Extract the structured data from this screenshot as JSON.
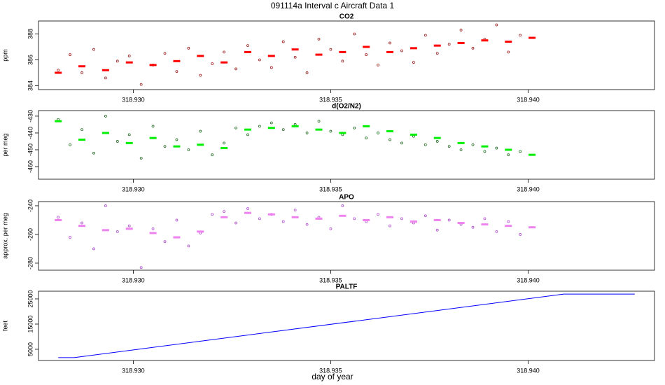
{
  "title": "091114a   Interval c Aircraft Data 1",
  "xlabel": "day of year",
  "chart_data": [
    {
      "type": "scatter",
      "title": "CO2",
      "ylabel": "ppm",
      "xlim": [
        318.9276,
        318.9432
      ],
      "ylim": [
        383.7,
        389.0
      ],
      "xticks": [
        {
          "value": 318.93,
          "label": "318.930"
        },
        {
          "value": 318.935,
          "label": "318.935"
        },
        {
          "value": 318.94,
          "label": "318.940"
        }
      ],
      "yticks": [
        384,
        386,
        388
      ],
      "series": [
        {
          "color": "#9b1c1c",
          "marker": "circle",
          "x": [
            318.9281,
            318.9284,
            318.9287,
            318.929,
            318.9293,
            318.9296,
            318.9299,
            318.9302,
            318.9305,
            318.9308,
            318.9311,
            318.9314,
            318.9317,
            318.932,
            318.9323,
            318.9326,
            318.9329,
            318.9332,
            318.9335,
            318.9338,
            318.9341,
            318.9344,
            318.9347,
            318.935,
            318.9353,
            318.9356,
            318.9359,
            318.9362,
            318.9365,
            318.9368,
            318.9371,
            318.9374,
            318.9377,
            318.938,
            318.9383,
            318.9386,
            318.9389,
            318.9392,
            318.9395,
            318.9398
          ],
          "values": [
            385.2,
            386.4,
            385.0,
            386.8,
            384.6,
            385.9,
            386.3,
            384.1,
            385.6,
            386.5,
            385.1,
            386.9,
            384.8,
            385.7,
            386.6,
            385.3,
            387.1,
            386.0,
            385.4,
            387.4,
            386.2,
            385.0,
            387.6,
            386.8,
            385.9,
            388.0,
            386.4,
            385.6,
            387.3,
            386.7,
            385.8,
            387.9,
            386.5,
            387.2,
            388.3,
            386.9,
            387.6,
            388.7,
            386.6,
            387.9
          ]
        },
        {
          "color": "#ff0000",
          "marker": "dash",
          "x": [
            318.9281,
            318.9287,
            318.9293,
            318.9299,
            318.9305,
            318.9311,
            318.9317,
            318.9323,
            318.9329,
            318.9335,
            318.9341,
            318.9347,
            318.9353,
            318.9359,
            318.9365,
            318.9371,
            318.9377,
            318.9383,
            318.9389,
            318.9395,
            318.9401
          ],
          "values": [
            385.0,
            385.5,
            385.2,
            385.8,
            385.6,
            385.9,
            386.3,
            385.8,
            386.6,
            386.3,
            386.8,
            386.4,
            386.6,
            387.0,
            386.6,
            386.9,
            387.1,
            387.3,
            387.5,
            387.4,
            387.7
          ]
        }
      ]
    },
    {
      "type": "scatter",
      "title": "d(O2/N2)",
      "ylabel": "per meg",
      "xlim": [
        318.9276,
        318.9432
      ],
      "ylim": [
        -467.5,
        -426.7
      ],
      "xticks": [
        {
          "value": 318.93,
          "label": "318.930"
        },
        {
          "value": 318.935,
          "label": "318.935"
        },
        {
          "value": 318.94,
          "label": "318.940"
        }
      ],
      "yticks": [
        -460,
        -450,
        -440,
        -430
      ],
      "series": [
        {
          "color": "#1e6b1e",
          "marker": "circle",
          "x": [
            318.9281,
            318.9284,
            318.9287,
            318.929,
            318.9293,
            318.9296,
            318.9299,
            318.9302,
            318.9305,
            318.9308,
            318.9311,
            318.9314,
            318.9317,
            318.932,
            318.9323,
            318.9326,
            318.9329,
            318.9332,
            318.9335,
            318.9338,
            318.9341,
            318.9344,
            318.9347,
            318.935,
            318.9353,
            318.9356,
            318.9359,
            318.9362,
            318.9365,
            318.9368,
            318.9371,
            318.9374,
            318.9377,
            318.938,
            318.9383,
            318.9386,
            318.9389,
            318.9392,
            318.9395,
            318.9398
          ],
          "values": [
            -432,
            -447,
            -438,
            -452,
            -430,
            -445,
            -441,
            -455,
            -436,
            -448,
            -444,
            -450,
            -439,
            -453,
            -446,
            -437,
            -441,
            -436,
            -434,
            -438,
            -435,
            -440,
            -433,
            -439,
            -441,
            -437,
            -443,
            -440,
            -444,
            -446,
            -442,
            -447,
            -445,
            -448,
            -450,
            -447,
            -451,
            -449,
            -453,
            -451
          ]
        },
        {
          "color": "#00ee00",
          "marker": "dash",
          "x": [
            318.9281,
            318.9287,
            318.9293,
            318.9299,
            318.9305,
            318.9311,
            318.9317,
            318.9323,
            318.9329,
            318.9335,
            318.9341,
            318.9347,
            318.9353,
            318.9359,
            318.9365,
            318.9371,
            318.9377,
            318.9383,
            318.9389,
            318.9395,
            318.9401
          ],
          "values": [
            -433,
            -444,
            -440,
            -446,
            -443,
            -448,
            -447,
            -449,
            -438,
            -437,
            -436,
            -438,
            -440,
            -436,
            -439,
            -441,
            -443,
            -446,
            -448,
            -450,
            -453
          ]
        }
      ]
    },
    {
      "type": "scatter",
      "title": "APO",
      "ylabel": "approx. per meg",
      "xlim": [
        318.9276,
        318.9432
      ],
      "ylim": [
        -284.9,
        -237.1
      ],
      "xticks": [
        {
          "value": 318.93,
          "label": "318.930"
        },
        {
          "value": 318.935,
          "label": "318.935"
        },
        {
          "value": 318.94,
          "label": "318.940"
        }
      ],
      "yticks": [
        -280,
        -260,
        -240
      ],
      "series": [
        {
          "color": "#b04ad0",
          "marker": "circle",
          "x": [
            318.9281,
            318.9284,
            318.9287,
            318.929,
            318.9293,
            318.9296,
            318.9299,
            318.9302,
            318.9305,
            318.9308,
            318.9311,
            318.9314,
            318.9317,
            318.932,
            318.9323,
            318.9326,
            318.9329,
            318.9332,
            318.9335,
            318.9338,
            318.9341,
            318.9344,
            318.9347,
            318.935,
            318.9353,
            318.9356,
            318.9359,
            318.9362,
            318.9365,
            318.9368,
            318.9371,
            318.9374,
            318.9377,
            318.938,
            318.9383,
            318.9386,
            318.9389,
            318.9392,
            318.9395,
            318.9398
          ],
          "values": [
            -248,
            -262,
            -252,
            -270,
            -240,
            -258,
            -254,
            -283,
            -256,
            -265,
            -250,
            -268,
            -259,
            -246,
            -244,
            -252,
            -242,
            -249,
            -246,
            -251,
            -243,
            -253,
            -248,
            -256,
            -240,
            -249,
            -251,
            -246,
            -254,
            -249,
            -252,
            -247,
            -257,
            -250,
            -253,
            -255,
            -249,
            -258,
            -251,
            -260
          ]
        },
        {
          "color": "#ee82ee",
          "marker": "dash",
          "x": [
            318.9281,
            318.9287,
            318.9293,
            318.9299,
            318.9305,
            318.9311,
            318.9317,
            318.9323,
            318.9329,
            318.9335,
            318.9341,
            318.9347,
            318.9353,
            318.9359,
            318.9365,
            318.9371,
            318.9377,
            318.9383,
            318.9389,
            318.9395,
            318.9401
          ],
          "values": [
            -250,
            -254,
            -257,
            -256,
            -259,
            -262,
            -258,
            -248,
            -245,
            -246,
            -248,
            -249,
            -247,
            -250,
            -248,
            -251,
            -250,
            -252,
            -253,
            -254,
            -255
          ]
        }
      ]
    },
    {
      "type": "line",
      "title": "PALTF",
      "ylabel": "feet",
      "xlim": [
        318.9276,
        318.9432
      ],
      "ylim": [
        550,
        28050
      ],
      "xticks": [
        {
          "value": 318.93,
          "label": "318.930"
        },
        {
          "value": 318.935,
          "label": "318.935"
        },
        {
          "value": 318.94,
          "label": "318.940"
        }
      ],
      "yticks": [
        5000,
        15000,
        25000
      ],
      "series": [
        {
          "color": "#0000ff",
          "x": [
            318.9281,
            318.9285,
            318.9409,
            318.9427
          ],
          "values": [
            1700,
            1700,
            26900,
            26900
          ]
        }
      ]
    }
  ]
}
